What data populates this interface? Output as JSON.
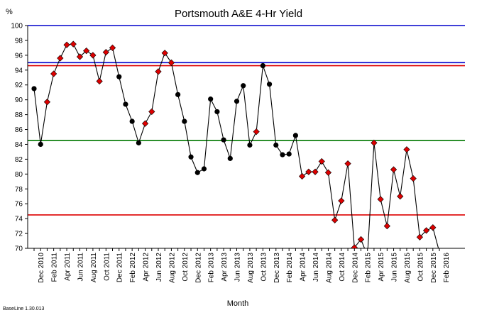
{
  "chart_data": {
    "type": "line",
    "title": "Portsmouth A&E 4-Hr Yield",
    "ylabel": "%",
    "xlabel": "Month",
    "ylim": [
      70,
      100
    ],
    "yticks": [
      70,
      72,
      74,
      76,
      78,
      80,
      82,
      84,
      86,
      88,
      90,
      92,
      94,
      96,
      98,
      100
    ],
    "x_tick_labels": [
      "Dec 2010",
      "Feb 2011",
      "Apr 2011",
      "Jun 2011",
      "Aug 2011",
      "Oct 2011",
      "Dec 2011",
      "Feb 2012",
      "Apr 2012",
      "Jun 2012",
      "Aug 2012",
      "Oct 2012",
      "Dec 2012",
      "Feb 2013",
      "Apr 2013",
      "Jun 2013",
      "Aug 2013",
      "Oct 2013",
      "Dec 2013",
      "Feb 2014",
      "Apr 2014",
      "Jun 2014",
      "Aug 2014",
      "Oct 2014",
      "Dec 2014",
      "Feb 2015",
      "Apr 2015",
      "Jun 2015",
      "Aug 2015",
      "Oct 2015",
      "Dec 2015",
      "Feb 2016"
    ],
    "months": [
      "Nov 2010",
      "Dec 2010",
      "Jan 2011",
      "Feb 2011",
      "Mar 2011",
      "Apr 2011",
      "May 2011",
      "Jun 2011",
      "Jul 2011",
      "Aug 2011",
      "Sep 2011",
      "Oct 2011",
      "Nov 2011",
      "Dec 2011",
      "Jan 2012",
      "Feb 2012",
      "Mar 2012",
      "Apr 2012",
      "May 2012",
      "Jun 2012",
      "Jul 2012",
      "Aug 2012",
      "Sep 2012",
      "Oct 2012",
      "Nov 2012",
      "Dec 2012",
      "Jan 2013",
      "Feb 2013",
      "Mar 2013",
      "Apr 2013",
      "May 2013",
      "Jun 2013",
      "Jul 2013",
      "Aug 2013",
      "Sep 2013",
      "Oct 2013",
      "Nov 2013",
      "Dec 2013",
      "Jan 2014",
      "Feb 2014",
      "Mar 2014",
      "Apr 2014",
      "May 2014",
      "Jun 2014",
      "Jul 2014",
      "Aug 2014",
      "Sep 2014",
      "Oct 2014",
      "Nov 2014",
      "Dec 2014",
      "Jan 2015",
      "Feb 2015",
      "Mar 2015",
      "Apr 2015",
      "May 2015",
      "Jun 2015",
      "Jul 2015",
      "Aug 2015",
      "Sep 2015",
      "Oct 2015",
      "Nov 2015",
      "Dec 2015",
      "Jan 2016"
    ],
    "values": [
      91.5,
      84.0,
      89.7,
      93.5,
      95.6,
      97.4,
      97.5,
      95.8,
      96.6,
      96.0,
      92.5,
      96.4,
      97.0,
      93.1,
      89.4,
      87.1,
      84.2,
      86.8,
      88.4,
      93.8,
      96.3,
      95.0,
      90.7,
      87.1,
      82.3,
      80.2,
      80.7,
      90.1,
      88.4,
      84.6,
      82.1,
      89.8,
      91.9,
      83.9,
      85.7,
      94.6,
      92.1,
      83.9,
      82.6,
      82.7,
      85.2,
      79.7,
      80.3,
      80.3,
      81.7,
      80.2,
      73.8,
      76.4,
      81.4,
      70.1,
      71.2,
      69.0,
      84.2,
      76.6,
      73.0,
      80.6,
      77.0,
      83.3,
      79.4,
      71.5,
      72.4,
      72.8,
      69.5
    ],
    "markers": [
      "circle",
      "circle",
      "diamond",
      "diamond",
      "diamond",
      "diamond",
      "diamond",
      "diamond",
      "diamond",
      "diamond",
      "diamond",
      "diamond",
      "diamond",
      "circle",
      "circle",
      "circle",
      "circle",
      "diamond",
      "diamond",
      "diamond",
      "diamond",
      "diamond",
      "circle",
      "circle",
      "circle",
      "circle",
      "circle",
      "circle",
      "circle",
      "circle",
      "circle",
      "circle",
      "circle",
      "circle",
      "diamond",
      "circle",
      "circle",
      "circle",
      "circle",
      "circle",
      "circle",
      "diamond",
      "diamond",
      "diamond",
      "diamond",
      "diamond",
      "diamond",
      "diamond",
      "diamond",
      "diamond",
      "diamond",
      "diamond",
      "diamond",
      "diamond",
      "diamond",
      "diamond",
      "diamond",
      "diamond",
      "diamond",
      "diamond",
      "diamond",
      "diamond",
      "diamond"
    ],
    "reference_lines": [
      {
        "value": 100,
        "color": "#0000cc"
      },
      {
        "value": 95,
        "color": "#0000cc"
      },
      {
        "value": 94.6,
        "color": "#dd0000"
      },
      {
        "value": 84.5,
        "color": "#007700"
      },
      {
        "value": 74.5,
        "color": "#dd0000"
      }
    ],
    "colors": {
      "line": "#000000",
      "circle": "#000000",
      "diamond": "#dd0000",
      "diamond_edge": "#000000"
    },
    "grid": false,
    "legend": "none"
  },
  "footer": "BaseLine 1.30.013"
}
